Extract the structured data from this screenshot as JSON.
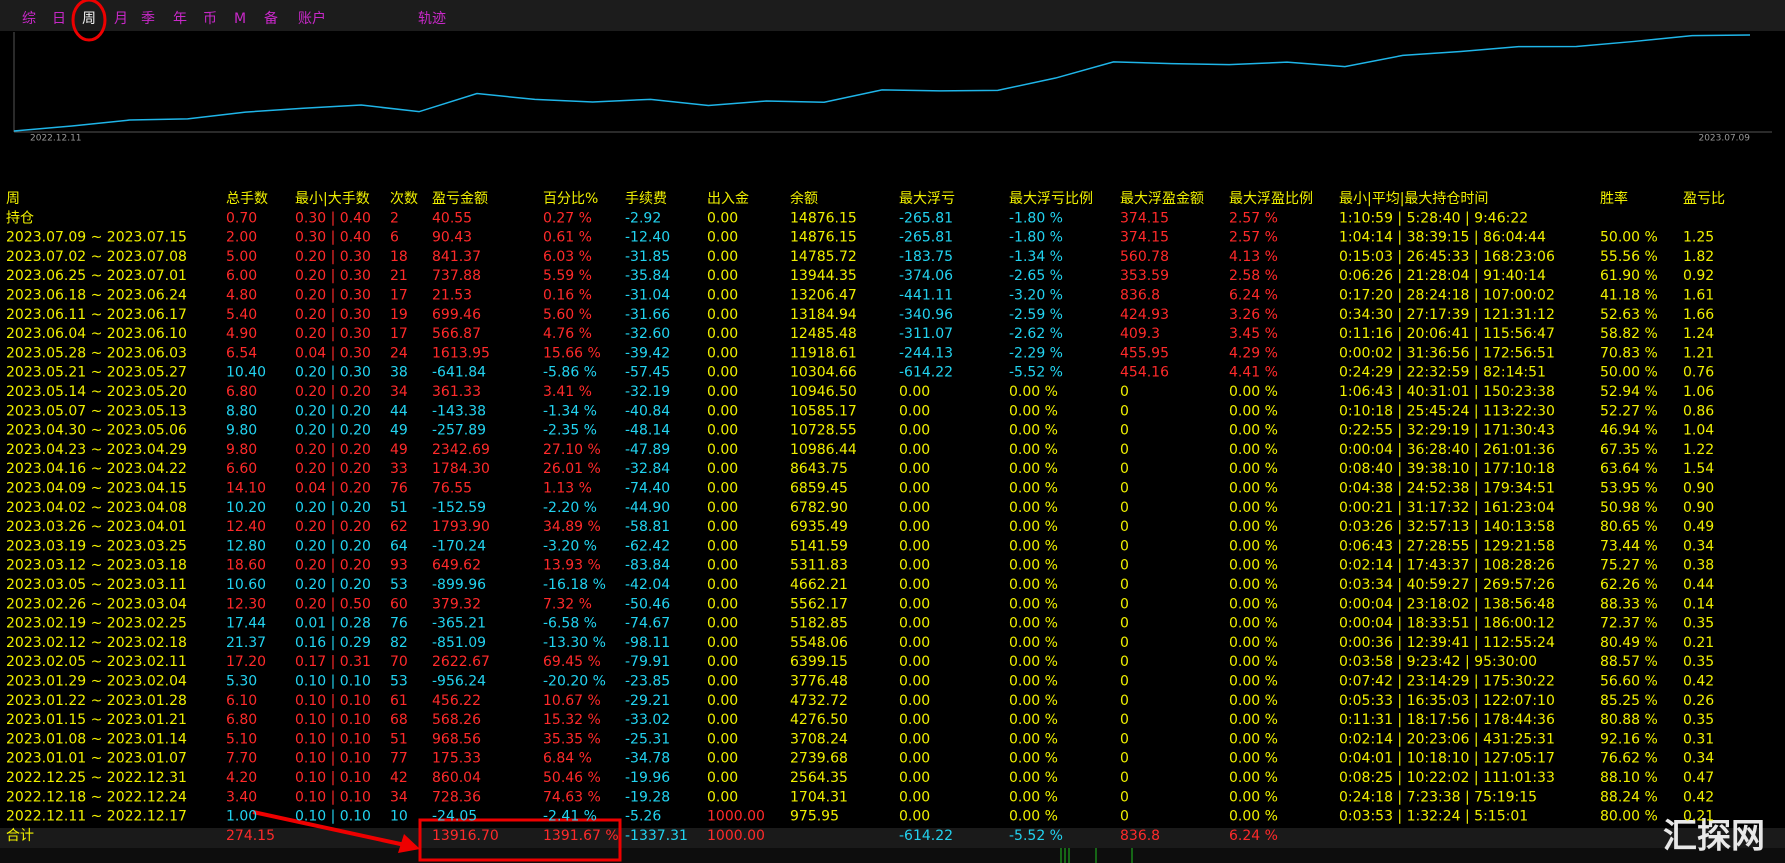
{
  "tabs": [
    "综",
    "日",
    "周",
    "月",
    "季",
    "年",
    "币",
    "M",
    "备",
    "账户",
    "轨迹"
  ],
  "chart": {
    "date_labels": [
      "2022.12.11",
      "2023.07.09"
    ]
  },
  "table": {
    "headers": [
      "周",
      "总手数",
      "最小|大手数",
      "次数",
      "盈亏金额",
      "百分比%",
      "手续费",
      "出入金",
      "余额",
      "最大浮亏",
      "最大浮亏比例",
      "最大浮盈金额",
      "最大浮盈比例",
      "最小|平均|最大持仓时间",
      "胜率",
      "盈亏比"
    ],
    "rows": [
      [
        "持仓",
        "0.70",
        "0.30 | 0.40",
        "2",
        "40.55",
        "0.27 %",
        "-2.92",
        "0.00",
        "14876.15",
        "-265.81",
        "-1.80 %",
        "374.15",
        "2.57 %",
        "1:10:59 | 5:28:40 | 9:46:22",
        null,
        null
      ],
      [
        "2023.07.09 ~ 2023.07.15",
        "2.00",
        "0.30 | 0.40",
        "6",
        "90.43",
        "0.61 %",
        "-12.40",
        "0.00",
        "14876.15",
        "-265.81",
        "-1.80 %",
        "374.15",
        "2.57 %",
        "1:04:14 | 38:39:15 | 86:04:44",
        "50.00 %",
        "1.25"
      ],
      [
        "2023.07.02 ~ 2023.07.08",
        "5.00",
        "0.20 | 0.30",
        "18",
        "841.37",
        "6.03 %",
        "-31.85",
        "0.00",
        "14785.72",
        "-183.75",
        "-1.34 %",
        "560.78",
        "4.13 %",
        "0:15:03 | 26:45:33 | 168:23:06",
        "55.56 %",
        "1.82"
      ],
      [
        "2023.06.25 ~ 2023.07.01",
        "6.00",
        "0.20 | 0.30",
        "21",
        "737.88",
        "5.59 %",
        "-35.84",
        "0.00",
        "13944.35",
        "-374.06",
        "-2.65 %",
        "353.59",
        "2.58 %",
        "0:06:26 | 21:28:04 | 91:40:14",
        "61.90 %",
        "0.92"
      ],
      [
        "2023.06.18 ~ 2023.06.24",
        "4.80",
        "0.20 | 0.30",
        "17",
        "21.53",
        "0.16 %",
        "-31.04",
        "0.00",
        "13206.47",
        "-441.11",
        "-3.20 %",
        "836.8",
        "6.24 %",
        "0:17:20 | 28:24:18 | 107:00:02",
        "41.18 %",
        "1.61"
      ],
      [
        "2023.06.11 ~ 2023.06.17",
        "5.40",
        "0.20 | 0.30",
        "19",
        "699.46",
        "5.60 %",
        "-31.66",
        "0.00",
        "13184.94",
        "-340.96",
        "-2.59 %",
        "424.93",
        "3.26 %",
        "0:34:30 | 27:17:39 | 121:31:12",
        "52.63 %",
        "1.66"
      ],
      [
        "2023.06.04 ~ 2023.06.10",
        "4.90",
        "0.20 | 0.30",
        "17",
        "566.87",
        "4.76 %",
        "-32.60",
        "0.00",
        "12485.48",
        "-311.07",
        "-2.62 %",
        "409.3",
        "3.45 %",
        "0:11:16 | 20:06:41 | 115:56:47",
        "58.82 %",
        "1.24"
      ],
      [
        "2023.05.28 ~ 2023.06.03",
        "6.54",
        "0.04 | 0.30",
        "24",
        "1613.95",
        "15.66 %",
        "-39.42",
        "0.00",
        "11918.61",
        "-244.13",
        "-2.29 %",
        "455.95",
        "4.29 %",
        "0:00:02 | 31:36:56 | 172:56:51",
        "70.83 %",
        "1.21"
      ],
      [
        "2023.05.21 ~ 2023.05.27",
        "10.40",
        "0.20 | 0.30",
        "38",
        "-641.84",
        "-5.86 %",
        "-57.45",
        "0.00",
        "10304.66",
        "-614.22",
        "-5.52 %",
        "454.16",
        "4.41 %",
        "0:24:29 | 22:32:59 | 82:14:51",
        "50.00 %",
        "0.76"
      ],
      [
        "2023.05.14 ~ 2023.05.20",
        "6.80",
        "0.20 | 0.20",
        "34",
        "361.33",
        "3.41 %",
        "-32.19",
        "0.00",
        "10946.50",
        "0.00",
        "0.00 %",
        "0",
        "0.00 %",
        "1:06:43 | 40:31:01 | 150:23:38",
        "52.94 %",
        "1.06"
      ],
      [
        "2023.05.07 ~ 2023.05.13",
        "8.80",
        "0.20 | 0.20",
        "44",
        "-143.38",
        "-1.34 %",
        "-40.84",
        "0.00",
        "10585.17",
        "0.00",
        "0.00 %",
        "0",
        "0.00 %",
        "0:10:18 | 25:45:24 | 113:22:30",
        "52.27 %",
        "0.86"
      ],
      [
        "2023.04.30 ~ 2023.05.06",
        "9.80",
        "0.20 | 0.20",
        "49",
        "-257.89",
        "-2.35 %",
        "-48.14",
        "0.00",
        "10728.55",
        "0.00",
        "0.00 %",
        "0",
        "0.00 %",
        "0:22:55 | 32:29:19 | 171:30:43",
        "46.94 %",
        "1.04"
      ],
      [
        "2023.04.23 ~ 2023.04.29",
        "9.80",
        "0.20 | 0.20",
        "49",
        "2342.69",
        "27.10 %",
        "-47.89",
        "0.00",
        "10986.44",
        "0.00",
        "0.00 %",
        "0",
        "0.00 %",
        "0:00:04 | 36:28:40 | 261:01:36",
        "67.35 %",
        "1.22"
      ],
      [
        "2023.04.16 ~ 2023.04.22",
        "6.60",
        "0.20 | 0.20",
        "33",
        "1784.30",
        "26.01 %",
        "-32.84",
        "0.00",
        "8643.75",
        "0.00",
        "0.00 %",
        "0",
        "0.00 %",
        "0:08:40 | 39:38:10 | 177:10:18",
        "63.64 %",
        "1.54"
      ],
      [
        "2023.04.09 ~ 2023.04.15",
        "14.10",
        "0.04 | 0.20",
        "76",
        "76.55",
        "1.13 %",
        "-74.40",
        "0.00",
        "6859.45",
        "0.00",
        "0.00 %",
        "0",
        "0.00 %",
        "0:04:38 | 24:52:38 | 179:34:51",
        "53.95 %",
        "0.90"
      ],
      [
        "2023.04.02 ~ 2023.04.08",
        "10.20",
        "0.20 | 0.20",
        "51",
        "-152.59",
        "-2.20 %",
        "-44.90",
        "0.00",
        "6782.90",
        "0.00",
        "0.00 %",
        "0",
        "0.00 %",
        "0:00:21 | 31:17:32 | 161:23:04",
        "50.98 %",
        "0.90"
      ],
      [
        "2023.03.26 ~ 2023.04.01",
        "12.40",
        "0.20 | 0.20",
        "62",
        "1793.90",
        "34.89 %",
        "-58.81",
        "0.00",
        "6935.49",
        "0.00",
        "0.00 %",
        "0",
        "0.00 %",
        "0:03:26 | 32:57:13 | 140:13:58",
        "80.65 %",
        "0.49"
      ],
      [
        "2023.03.19 ~ 2023.03.25",
        "12.80",
        "0.20 | 0.20",
        "64",
        "-170.24",
        "-3.20 %",
        "-62.42",
        "0.00",
        "5141.59",
        "0.00",
        "0.00 %",
        "0",
        "0.00 %",
        "0:06:43 | 27:28:55 | 129:21:58",
        "73.44 %",
        "0.34"
      ],
      [
        "2023.03.12 ~ 2023.03.18",
        "18.60",
        "0.20 | 0.20",
        "93",
        "649.62",
        "13.93 %",
        "-83.84",
        "0.00",
        "5311.83",
        "0.00",
        "0.00 %",
        "0",
        "0.00 %",
        "0:02:14 | 17:43:37 | 108:28:26",
        "75.27 %",
        "0.38"
      ],
      [
        "2023.03.05 ~ 2023.03.11",
        "10.60",
        "0.20 | 0.20",
        "53",
        "-899.96",
        "-16.18 %",
        "-42.04",
        "0.00",
        "4662.21",
        "0.00",
        "0.00 %",
        "0",
        "0.00 %",
        "0:03:34 | 40:59:27 | 269:57:26",
        "62.26 %",
        "0.44"
      ],
      [
        "2023.02.26 ~ 2023.03.04",
        "12.30",
        "0.20 | 0.50",
        "60",
        "379.32",
        "7.32 %",
        "-50.46",
        "0.00",
        "5562.17",
        "0.00",
        "0.00 %",
        "0",
        "0.00 %",
        "0:00:04 | 23:18:02 | 138:56:48",
        "88.33 %",
        "0.14"
      ],
      [
        "2023.02.19 ~ 2023.02.25",
        "17.44",
        "0.01 | 0.28",
        "76",
        "-365.21",
        "-6.58 %",
        "-74.67",
        "0.00",
        "5182.85",
        "0.00",
        "0.00 %",
        "0",
        "0.00 %",
        "0:00:04 | 18:33:51 | 186:00:12",
        "72.37 %",
        "0.35"
      ],
      [
        "2023.02.12 ~ 2023.02.18",
        "21.37",
        "0.16 | 0.29",
        "82",
        "-851.09",
        "-13.30 %",
        "-98.11",
        "0.00",
        "5548.06",
        "0.00",
        "0.00 %",
        "0",
        "0.00 %",
        "0:00:36 | 12:39:41 | 112:55:24",
        "80.49 %",
        "0.21"
      ],
      [
        "2023.02.05 ~ 2023.02.11",
        "17.20",
        "0.17 | 0.31",
        "70",
        "2622.67",
        "69.45 %",
        "-79.91",
        "0.00",
        "6399.15",
        "0.00",
        "0.00 %",
        "0",
        "0.00 %",
        "0:03:58 | 9:23:42 | 95:30:00",
        "88.57 %",
        "0.35"
      ],
      [
        "2023.01.29 ~ 2023.02.04",
        "5.30",
        "0.10 | 0.10",
        "53",
        "-956.24",
        "-20.20 %",
        "-23.85",
        "0.00",
        "3776.48",
        "0.00",
        "0.00 %",
        "0",
        "0.00 %",
        "0:07:42 | 23:14:29 | 175:30:22",
        "56.60 %",
        "0.42"
      ],
      [
        "2023.01.22 ~ 2023.01.28",
        "6.10",
        "0.10 | 0.10",
        "61",
        "456.22",
        "10.67 %",
        "-29.21",
        "0.00",
        "4732.72",
        "0.00",
        "0.00 %",
        "0",
        "0.00 %",
        "0:05:33 | 16:35:03 | 122:07:10",
        "85.25 %",
        "0.26"
      ],
      [
        "2023.01.15 ~ 2023.01.21",
        "6.80",
        "0.10 | 0.10",
        "68",
        "568.26",
        "15.32 %",
        "-33.02",
        "0.00",
        "4276.50",
        "0.00",
        "0.00 %",
        "0",
        "0.00 %",
        "0:11:31 | 18:17:56 | 178:44:36",
        "80.88 %",
        "0.35"
      ],
      [
        "2023.01.08 ~ 2023.01.14",
        "5.10",
        "0.10 | 0.10",
        "51",
        "968.56",
        "35.35 %",
        "-25.31",
        "0.00",
        "3708.24",
        "0.00",
        "0.00 %",
        "0",
        "0.00 %",
        "0:02:14 | 20:23:06 | 431:25:31",
        "92.16 %",
        "0.31"
      ],
      [
        "2023.01.01 ~ 2023.01.07",
        "7.70",
        "0.10 | 0.10",
        "77",
        "175.33",
        "6.84 %",
        "-34.78",
        "0.00",
        "2739.68",
        "0.00",
        "0.00 %",
        "0",
        "0.00 %",
        "0:04:01 | 10:18:10 | 127:05:17",
        "76.62 %",
        "0.34"
      ],
      [
        "2022.12.25 ~ 2022.12.31",
        "4.20",
        "0.10 | 0.10",
        "42",
        "860.04",
        "50.46 %",
        "-19.96",
        "0.00",
        "2564.35",
        "0.00",
        "0.00 %",
        "0",
        "0.00 %",
        "0:08:25 | 10:22:02 | 111:01:33",
        "88.10 %",
        "0.47"
      ],
      [
        "2022.12.18 ~ 2022.12.24",
        "3.40",
        "0.10 | 0.10",
        "34",
        "728.36",
        "74.63 %",
        "-19.28",
        "0.00",
        "1704.31",
        "0.00",
        "0.00 %",
        "0",
        "0.00 %",
        "0:24:18 | 7:23:38 | 75:19:15",
        "88.24 %",
        "0.42"
      ],
      [
        "2022.12.11 ~ 2022.12.17",
        "1.00",
        "0.10 | 0.10",
        "10",
        "-24.05",
        "-2.41 %",
        "-5.26",
        "1000.00",
        "975.95",
        "0.00",
        "0.00 %",
        "0",
        "0.00 %",
        "0:03:53 | 1:32:24 | 5:15:01",
        "80.00 %",
        "0.21"
      ]
    ],
    "total": [
      "合计",
      "274.15",
      null,
      null,
      "13916.70",
      "1391.67 %",
      "-1337.31",
      "1000.00",
      null,
      "-614.22",
      "-5.52 %",
      "836.8",
      "6.24 %",
      null,
      null,
      null
    ]
  },
  "watermark": "汇探网"
}
